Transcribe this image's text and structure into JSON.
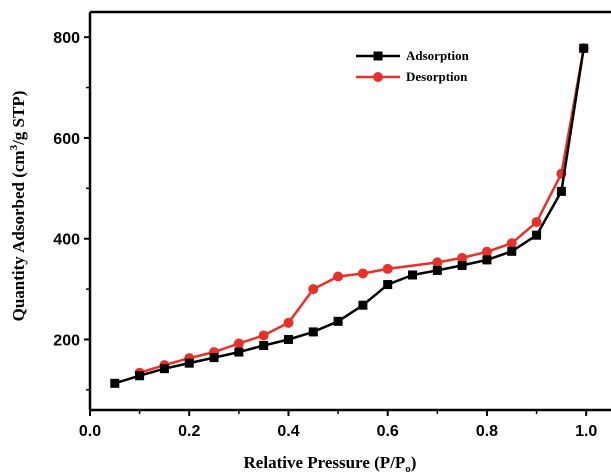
{
  "chart_data": {
    "type": "line",
    "xlabel_main": "Relative Pressure (P/P",
    "xlabel_sub": "o",
    "xlabel_end": ")",
    "ylabel_main": "Quantity Adsorbed (cm",
    "ylabel_sup": "3",
    "ylabel_end": "/g STP)",
    "xlim": [
      0.0,
      1.05
    ],
    "ylim": [
      60,
      850
    ],
    "x_ticks": [
      0.0,
      0.2,
      0.4,
      0.6,
      0.8,
      1.0
    ],
    "x_tick_labels": [
      "0.0",
      "0.2",
      "0.4",
      "0.6",
      "0.8",
      "1.0"
    ],
    "y_ticks": [
      200,
      400,
      600,
      800
    ],
    "y_tick_labels": [
      "200",
      "400",
      "600",
      "800"
    ],
    "legend_position": "top-right",
    "grid": false,
    "series": [
      {
        "name": "Adsorption",
        "color": "#000000",
        "marker": "square",
        "x": [
          0.05,
          0.1,
          0.15,
          0.2,
          0.25,
          0.3,
          0.35,
          0.4,
          0.45,
          0.5,
          0.55,
          0.6,
          0.65,
          0.7,
          0.75,
          0.8,
          0.85,
          0.9,
          0.95,
          0.995
        ],
        "y": [
          113,
          128,
          142,
          153,
          164,
          175,
          188,
          200,
          215,
          236,
          268,
          309,
          328,
          337,
          347,
          358,
          375,
          407,
          494,
          778
        ]
      },
      {
        "name": "Desorption",
        "color": "#e8302a",
        "marker": "circle",
        "x": [
          0.1,
          0.15,
          0.2,
          0.25,
          0.3,
          0.35,
          0.4,
          0.45,
          0.5,
          0.55,
          0.6,
          0.7,
          0.75,
          0.8,
          0.85,
          0.9,
          0.95,
          0.995
        ],
        "y": [
          134,
          149,
          163,
          175,
          192,
          208,
          233,
          300,
          325,
          331,
          340,
          353,
          362,
          374,
          391,
          433,
          529,
          778
        ]
      }
    ]
  }
}
